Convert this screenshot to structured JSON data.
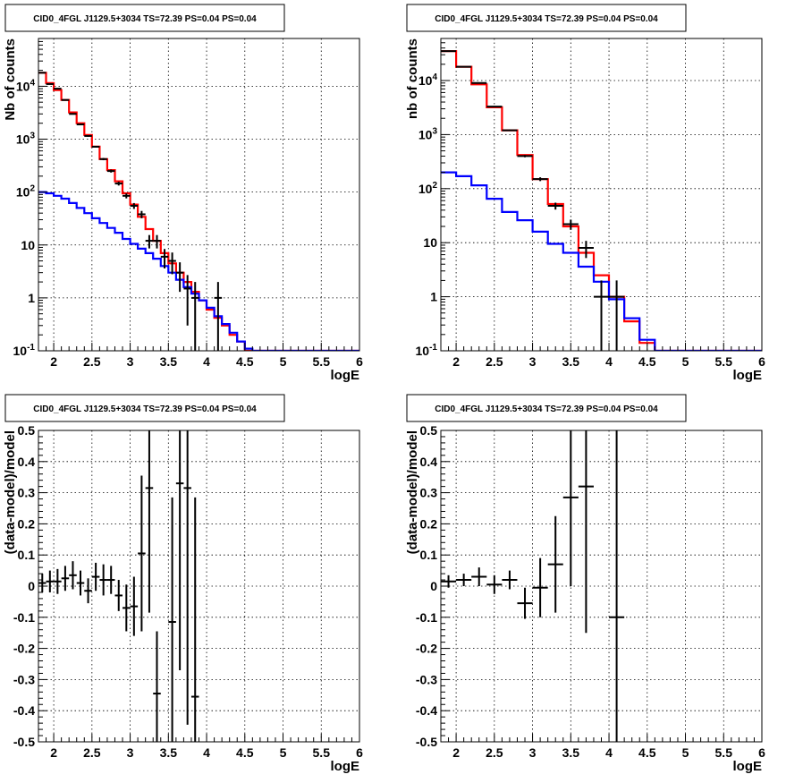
{
  "chart_data": [
    {
      "type": "line",
      "title": "CID0_4FGL J1129.5+3034 TS=72.39 PS=0.04 PS=0.04",
      "xlabel": "logE",
      "ylabel": "Nb of counts",
      "xlim": [
        1.8,
        6.0
      ],
      "ylim": [
        0.1,
        80000
      ],
      "yscale": "log",
      "grid": true,
      "x_ticks": [
        "2",
        "2.5",
        "3",
        "3.5",
        "4",
        "4.5",
        "5",
        "5.5",
        "6"
      ],
      "y_ticks": [
        "10^-1",
        "1",
        "10",
        "10^2",
        "10^3",
        "10^4"
      ],
      "bin_edges": [
        1.8,
        1.9,
        2.0,
        2.1,
        2.2,
        2.3,
        2.4,
        2.5,
        2.6,
        2.7,
        2.8,
        2.9,
        3.0,
        3.1,
        3.2,
        3.3,
        3.4,
        3.5,
        3.6,
        3.7,
        3.8,
        3.9,
        4.0,
        4.1,
        4.2,
        4.3,
        4.4,
        4.5,
        4.6,
        4.7,
        4.8,
        4.9,
        5.0,
        5.1,
        5.2,
        5.3,
        5.4,
        5.5,
        5.6,
        5.7,
        5.8,
        5.9,
        6.0
      ],
      "series": [
        {
          "color": "#ff0000",
          "kind": "step",
          "values": [
            18000,
            11500,
            8500,
            5500,
            3200,
            2000,
            1200,
            720,
            420,
            260,
            160,
            95,
            58,
            34,
            20,
            12,
            7,
            4.5,
            3,
            2,
            1.3,
            0.9,
            0.6,
            0.42,
            0.3,
            0.2,
            0.15,
            0.1,
            0.1,
            0.1,
            0.1,
            0.1,
            0.1,
            0.1,
            0.1,
            0.1,
            0.1,
            0.1,
            0.1,
            0.1,
            0.1,
            0.1
          ]
        },
        {
          "color": "#0000ff",
          "kind": "step",
          "values": [
            100,
            95,
            85,
            75,
            62,
            50,
            40,
            32,
            26,
            21,
            17,
            13,
            10.5,
            8.5,
            7,
            5.5,
            4,
            3,
            2.2,
            1.6,
            1.2,
            0.9,
            0.65,
            0.45,
            0.32,
            0.22,
            0.15,
            0.11,
            0.1,
            0.1,
            0.1,
            0.1,
            0.1,
            0.1,
            0.1,
            0.1,
            0.1,
            0.1,
            0.1,
            0.1,
            0.1,
            0.1
          ]
        },
        {
          "color": "#000000",
          "kind": "points",
          "x": [
            1.85,
            1.95,
            2.05,
            2.15,
            2.25,
            2.35,
            2.45,
            2.55,
            2.65,
            2.75,
            2.85,
            2.95,
            3.05,
            3.15,
            3.25,
            3.35,
            3.45,
            3.55,
            3.65,
            3.75,
            3.85,
            4.15
          ],
          "y": [
            18000,
            11000,
            9000,
            5500,
            3000,
            1900,
            1150,
            720,
            420,
            250,
            145,
            85,
            55,
            38,
            12,
            12,
            6,
            5,
            3,
            1.5,
            1,
            1
          ],
          "yerr_lo": [
            130,
            100,
            95,
            75,
            55,
            45,
            35,
            27,
            20,
            16,
            12,
            9,
            7,
            6,
            3.4,
            3.4,
            2.4,
            2.2,
            1.7,
            1.2,
            0.95,
            0.95
          ],
          "yerr_hi": [
            130,
            100,
            95,
            75,
            55,
            45,
            35,
            27,
            20,
            16,
            12,
            9,
            7,
            6,
            3.4,
            3.4,
            2.4,
            2.2,
            1.7,
            1.2,
            1,
            1
          ]
        }
      ]
    },
    {
      "type": "line",
      "title": "CID0_4FGL J1129.5+3034 TS=72.39 PS=0.04 PS=0.04",
      "xlabel": "logE",
      "ylabel": "nb of counts",
      "xlim": [
        1.8,
        6.0
      ],
      "ylim": [
        0.1,
        60000
      ],
      "yscale": "log",
      "grid": true,
      "x_ticks": [
        "2",
        "2.5",
        "3",
        "3.5",
        "4",
        "4.5",
        "5",
        "5.5",
        "6"
      ],
      "y_ticks": [
        "10^-1",
        "1",
        "10",
        "10^2",
        "10^3",
        "10^4"
      ],
      "bin_edges": [
        1.8,
        2.0,
        2.2,
        2.4,
        2.6,
        2.8,
        3.0,
        3.2,
        3.4,
        3.6,
        3.8,
        4.0,
        4.2,
        4.4,
        4.6,
        4.8,
        5.0,
        5.2,
        5.4,
        5.6,
        5.8,
        6.0
      ],
      "series": [
        {
          "color": "#ff0000",
          "kind": "step",
          "values": [
            35000,
            18000,
            8500,
            3200,
            1200,
            420,
            150,
            52,
            20,
            6.5,
            2.5,
            1.0,
            0.35,
            0.14,
            0.1,
            0.1,
            0.1,
            0.1,
            0.1,
            0.1,
            0.1
          ]
        },
        {
          "color": "#0000ff",
          "kind": "step",
          "values": [
            200,
            170,
            115,
            65,
            37,
            26,
            16,
            9.5,
            6.5,
            3.6,
            1.9,
            0.9,
            0.4,
            0.16,
            0.1,
            0.1,
            0.1,
            0.1,
            0.1,
            0.1,
            0.1
          ]
        },
        {
          "color": "#000000",
          "kind": "points",
          "x": [
            1.9,
            2.1,
            2.3,
            2.5,
            2.7,
            2.9,
            3.1,
            3.3,
            3.5,
            3.7,
            3.9,
            4.1
          ],
          "y": [
            35000,
            18000,
            9000,
            3300,
            1200,
            400,
            150,
            48,
            22,
            8,
            1,
            1
          ],
          "yerr_lo": [
            190,
            135,
            95,
            57,
            35,
            20,
            12,
            7,
            4.7,
            2.8,
            0.95,
            0.95
          ],
          "yerr_hi": [
            190,
            135,
            95,
            57,
            35,
            20,
            12,
            7,
            4.7,
            2.8,
            1,
            1
          ]
        }
      ]
    },
    {
      "type": "scatter",
      "title": "CID0_4FGL J1129.5+3034 TS=72.39 PS=0.04 PS=0.04",
      "xlabel": "logE",
      "ylabel": "(data-model)/model",
      "xlim": [
        1.8,
        6.0
      ],
      "ylim": [
        -0.5,
        0.5
      ],
      "grid": true,
      "x_ticks": [
        "2",
        "2.5",
        "3",
        "3.5",
        "4",
        "4.5",
        "5",
        "5.5",
        "6"
      ],
      "y_ticks": [
        "-0.5",
        "-0.4",
        "-0.3",
        "-0.2",
        "-0.1",
        "0",
        "0.1",
        "0.2",
        "0.3",
        "0.4",
        "0.5"
      ],
      "xerr": 0.05,
      "points": {
        "x": [
          1.85,
          1.95,
          2.05,
          2.15,
          2.25,
          2.35,
          2.45,
          2.55,
          2.65,
          2.75,
          2.85,
          2.95,
          3.05,
          3.15,
          3.25,
          3.35,
          3.55,
          3.65,
          3.75,
          3.85
        ],
        "y": [
          0.01,
          0.015,
          0.015,
          0.025,
          0.035,
          0.01,
          -0.015,
          0.03,
          0.02,
          0.02,
          -0.03,
          -0.07,
          -0.065,
          0.105,
          0.315,
          -0.345,
          -0.115,
          0.33,
          0.315,
          -0.355
        ],
        "err": [
          0.03,
          0.035,
          0.04,
          0.04,
          0.045,
          0.04,
          0.04,
          0.045,
          0.05,
          0.045,
          0.05,
          0.075,
          0.095,
          0.25,
          0.4,
          0.2,
          0.4,
          0.6,
          0.76,
          0.64
        ]
      }
    },
    {
      "type": "scatter",
      "title": "CID0_4FGL J1129.5+3034 TS=72.39 PS=0.04 PS=0.04",
      "xlabel": "logE",
      "ylabel": "(data-model)/model",
      "xlim": [
        1.8,
        6.0
      ],
      "ylim": [
        -0.5,
        0.5
      ],
      "grid": true,
      "x_ticks": [
        "2",
        "2.5",
        "3",
        "3.5",
        "4",
        "4.5",
        "5",
        "5.5",
        "6"
      ],
      "y_ticks": [
        "-0.5",
        "-0.4",
        "-0.3",
        "-0.2",
        "-0.1",
        "0",
        "0.1",
        "0.2",
        "0.3",
        "0.4",
        "0.5"
      ],
      "xerr": 0.1,
      "points": {
        "x": [
          1.9,
          2.1,
          2.3,
          2.5,
          2.7,
          2.9,
          3.1,
          3.3,
          3.5,
          3.7,
          4.1
        ],
        "y": [
          0.015,
          0.02,
          0.03,
          0.005,
          0.02,
          -0.055,
          -0.005,
          0.07,
          0.285,
          0.32,
          -0.1
        ],
        "err": [
          0.02,
          0.02,
          0.03,
          0.03,
          0.03,
          0.05,
          0.095,
          0.155,
          0.285,
          0.47,
          1.0
        ]
      }
    }
  ]
}
